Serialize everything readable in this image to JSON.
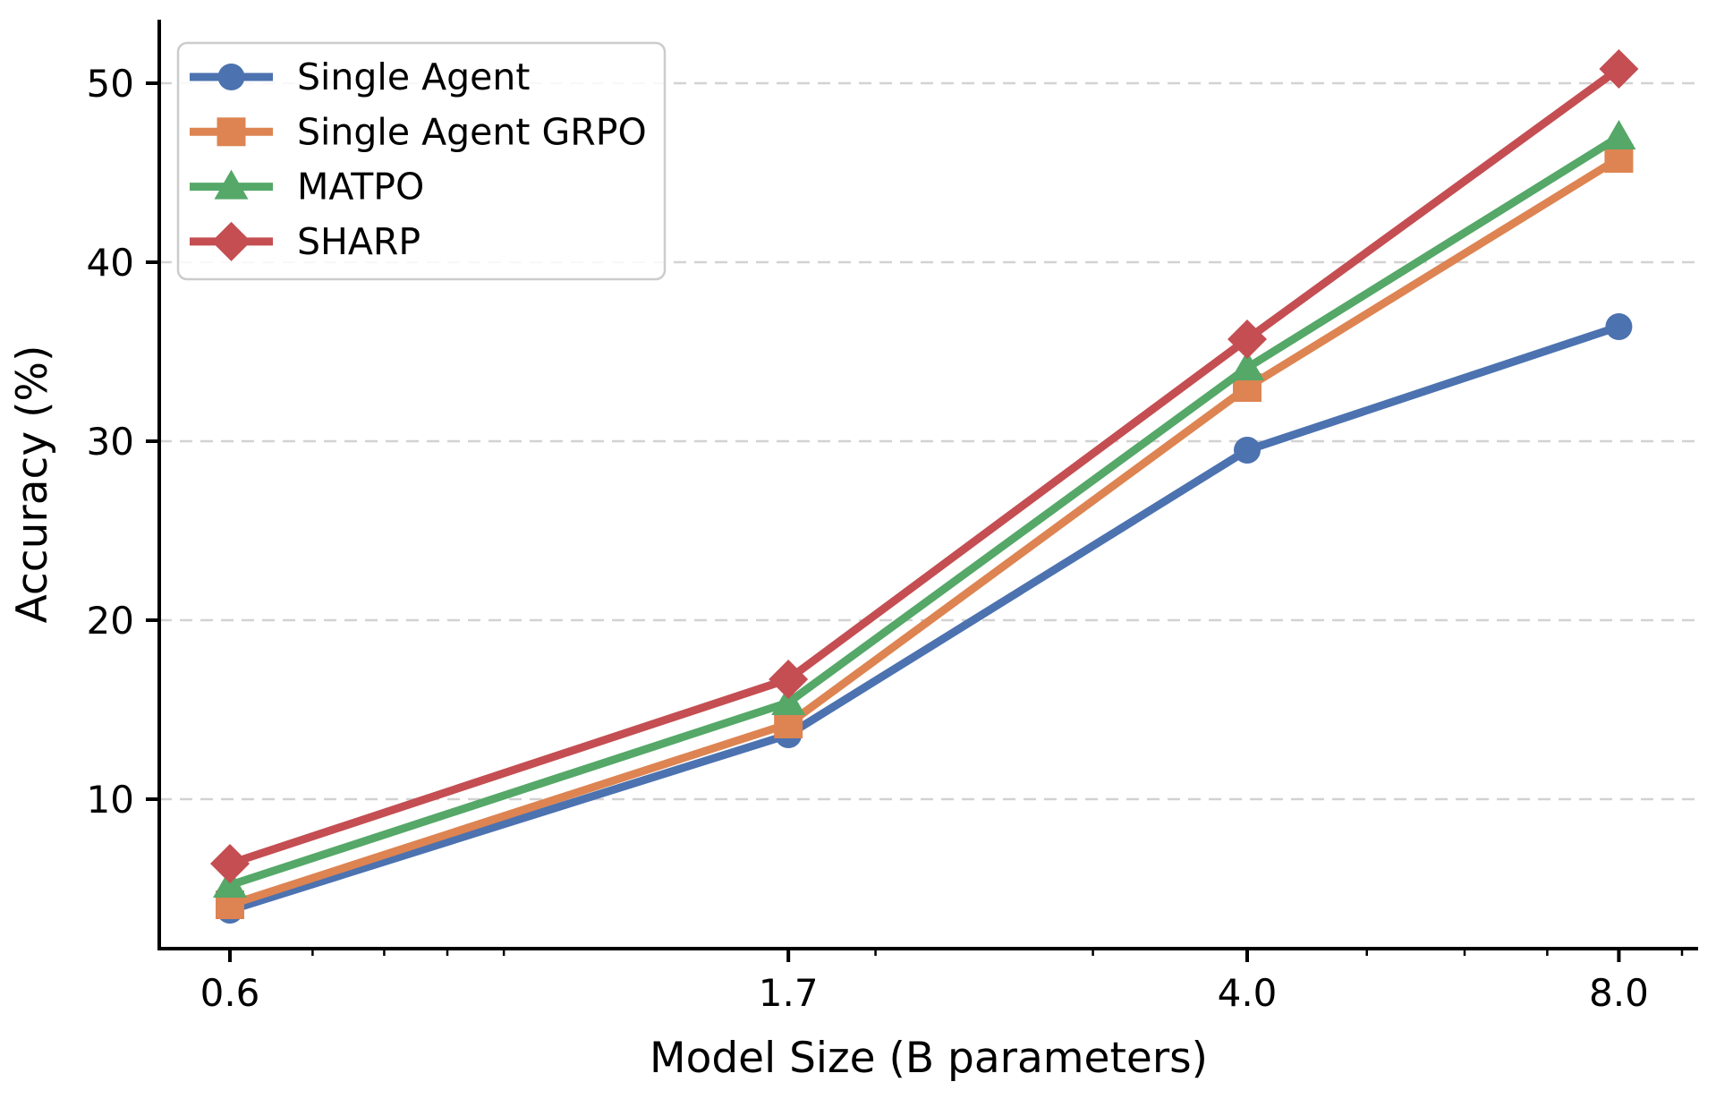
{
  "figure": {
    "background": "#ffffff",
    "title": ""
  },
  "chart_data": {
    "type": "line",
    "title": "",
    "xlabel": "Model Size (B parameters)",
    "ylabel": "Accuracy (%)",
    "x_scale": "log",
    "x": [
      0.6,
      1.7,
      4.0,
      8.0
    ],
    "x_tick_labels": [
      "0.6",
      "1.7",
      "4.0",
      "8.0"
    ],
    "x_minor_ticks": [
      0.7,
      0.8,
      0.9,
      1.0,
      2.0,
      3.0,
      5.0,
      6.0,
      7.0,
      9.0
    ],
    "y_ticks": [
      10,
      20,
      30,
      40,
      50
    ],
    "y_tick_labels": [
      "10",
      "20",
      "30",
      "40",
      "50"
    ],
    "xlim": [
      0.53,
      9.28
    ],
    "ylim": [
      1.65,
      53.55
    ],
    "grid": {
      "axis": "y",
      "style": "dashed",
      "color": "#d2d2d2"
    },
    "axis_color": "#000000",
    "legend": {
      "position": "upper-left",
      "frame": true
    },
    "series": [
      {
        "name": "Single Agent",
        "marker": "circle",
        "color": "#4C72B0",
        "values": [
          3.8,
          13.6,
          29.5,
          36.4
        ]
      },
      {
        "name": "Single Agent GRPO",
        "marker": "square",
        "color": "#DD8452",
        "values": [
          4.1,
          14.2,
          33.0,
          45.8
        ]
      },
      {
        "name": "MATPO",
        "marker": "triangle",
        "color": "#55A868",
        "values": [
          5.2,
          15.4,
          34.1,
          47.0
        ]
      },
      {
        "name": "SHARP",
        "marker": "diamond",
        "color": "#C44E52",
        "values": [
          6.4,
          16.7,
          35.7,
          50.8
        ]
      }
    ]
  }
}
